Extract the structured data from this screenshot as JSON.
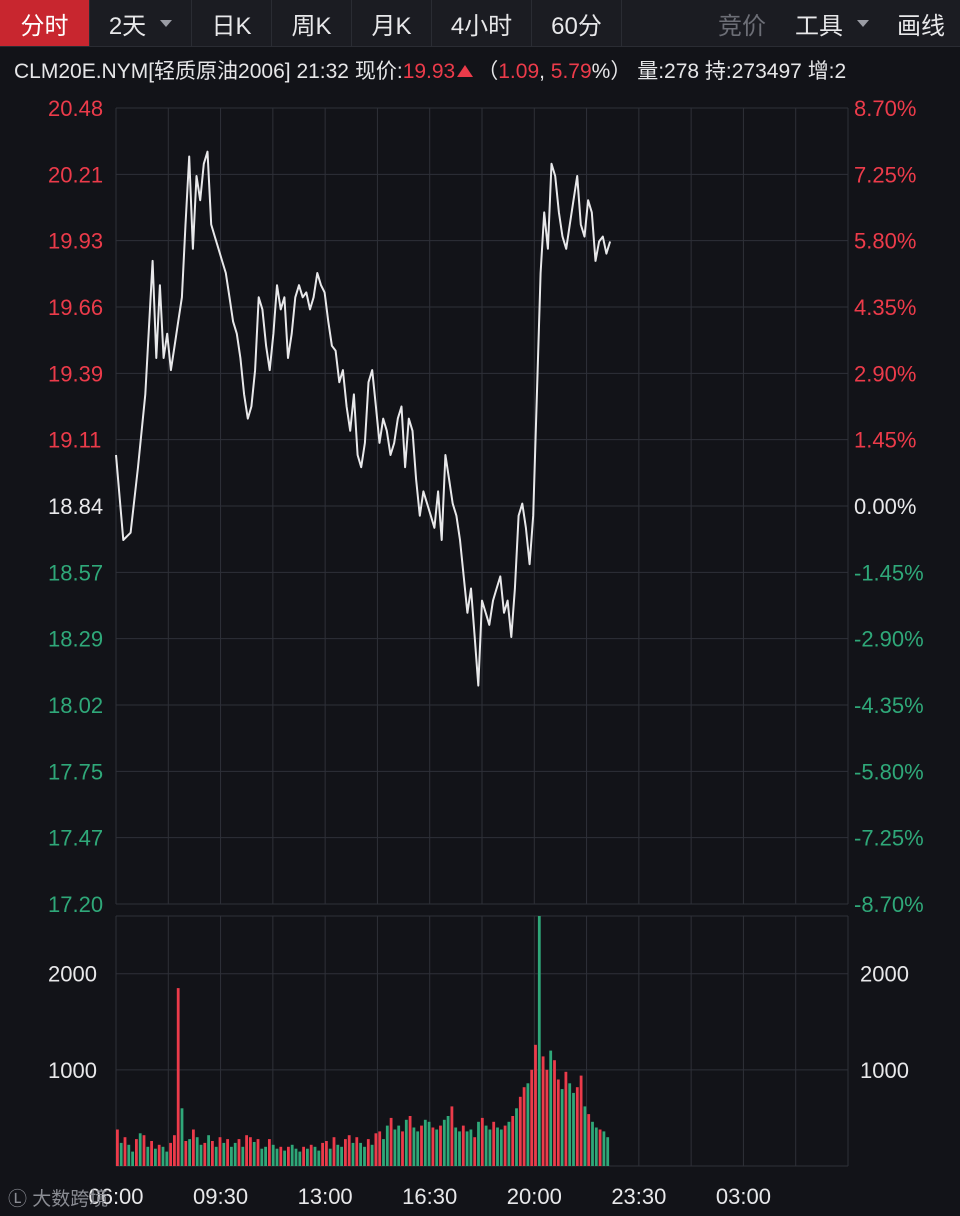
{
  "toolbar": {
    "tabs": [
      {
        "label": "分时",
        "active": true,
        "dropdown": false
      },
      {
        "label": "2天",
        "active": false,
        "dropdown": true
      },
      {
        "label": "日K",
        "active": false,
        "dropdown": false
      },
      {
        "label": "周K",
        "active": false,
        "dropdown": false
      },
      {
        "label": "月K",
        "active": false,
        "dropdown": false
      },
      {
        "label": "4小时",
        "active": false,
        "dropdown": false
      },
      {
        "label": "60分",
        "active": false,
        "dropdown": false
      }
    ],
    "auction_label": "竞价",
    "tools_label": "工具",
    "draw_label": "画线"
  },
  "info": {
    "symbol": "CLM20E.NYM[轻质原油2006]",
    "time": "21:32",
    "price_label": "现价:",
    "price": "19.93",
    "change_open": "（",
    "change": "1.09",
    "separator": ", ",
    "change_pct": "5.79",
    "pct_suffix": "%）",
    "volume": "量:278",
    "open_interest": "持:273497",
    "increase": "增:2"
  },
  "watermark": "大数跨境",
  "colors": {
    "up": "#ec3b4a",
    "down": "#2fa879",
    "line": "#e8e8ea",
    "grid": "#2e3038",
    "background": "#121318"
  },
  "chart_data": {
    "type": "line",
    "price_axis": [
      "20.48",
      "20.21",
      "19.93",
      "19.66",
      "19.39",
      "19.11",
      "18.84",
      "18.57",
      "18.29",
      "18.02",
      "17.75",
      "17.47",
      "17.20"
    ],
    "pct_axis": [
      "8.70%",
      "7.25%",
      "5.80%",
      "4.35%",
      "2.90%",
      "1.45%",
      "0.00%",
      "-1.45%",
      "-2.90%",
      "-4.35%",
      "-5.80%",
      "-7.25%",
      "-8.70%"
    ],
    "ylim": [
      17.2,
      20.48
    ],
    "reference_price": 18.84,
    "x_tick_labels": [
      "06:00",
      "09:30",
      "13:00",
      "16:30",
      "20:00",
      "23:30",
      "03:00"
    ],
    "volume_axis": [
      "2000",
      "1000"
    ],
    "volume_ylim": [
      0,
      2600
    ],
    "price": {
      "x": [
        0,
        0.01,
        0.02,
        0.03,
        0.04,
        0.05,
        0.055,
        0.06,
        0.065,
        0.07,
        0.075,
        0.08,
        0.085,
        0.09,
        0.095,
        0.1,
        0.105,
        0.11,
        0.115,
        0.12,
        0.125,
        0.13,
        0.135,
        0.14,
        0.145,
        0.15,
        0.155,
        0.16,
        0.165,
        0.17,
        0.175,
        0.18,
        0.185,
        0.19,
        0.195,
        0.2,
        0.205,
        0.21,
        0.215,
        0.22,
        0.225,
        0.23,
        0.235,
        0.24,
        0.245,
        0.25,
        0.255,
        0.26,
        0.265,
        0.27,
        0.275,
        0.28,
        0.285,
        0.29,
        0.295,
        0.3,
        0.305,
        0.31,
        0.315,
        0.32,
        0.325,
        0.33,
        0.335,
        0.34,
        0.345,
        0.35,
        0.355,
        0.36,
        0.365,
        0.37,
        0.375,
        0.38,
        0.385,
        0.39,
        0.395,
        0.4,
        0.405,
        0.41,
        0.415,
        0.42,
        0.425,
        0.43,
        0.435,
        0.44,
        0.445,
        0.45,
        0.455,
        0.46,
        0.465,
        0.47,
        0.475,
        0.48,
        0.485,
        0.49,
        0.495,
        0.5,
        0.505,
        0.51,
        0.515,
        0.52,
        0.525,
        0.53,
        0.535,
        0.54,
        0.545,
        0.55,
        0.555,
        0.56,
        0.565,
        0.57,
        0.575,
        0.58,
        0.585,
        0.59,
        0.595,
        0.6,
        0.605,
        0.61,
        0.615,
        0.62,
        0.625,
        0.63,
        0.635,
        0.64,
        0.645,
        0.65,
        0.655,
        0.66,
        0.665,
        0.67,
        0.675
      ],
      "y": [
        19.05,
        18.7,
        18.73,
        19.0,
        19.3,
        19.85,
        19.45,
        19.75,
        19.45,
        19.55,
        19.4,
        19.5,
        19.6,
        19.7,
        20.0,
        20.28,
        19.9,
        20.2,
        20.1,
        20.25,
        20.3,
        20.0,
        19.95,
        19.9,
        19.85,
        19.8,
        19.7,
        19.6,
        19.55,
        19.45,
        19.3,
        19.2,
        19.25,
        19.4,
        19.7,
        19.65,
        19.5,
        19.4,
        19.55,
        19.75,
        19.65,
        19.7,
        19.45,
        19.55,
        19.7,
        19.75,
        19.7,
        19.72,
        19.65,
        19.7,
        19.8,
        19.75,
        19.72,
        19.6,
        19.5,
        19.48,
        19.35,
        19.4,
        19.25,
        19.15,
        19.3,
        19.05,
        19.0,
        19.1,
        19.35,
        19.4,
        19.25,
        19.1,
        19.2,
        19.15,
        19.05,
        19.1,
        19.2,
        19.25,
        19.0,
        19.2,
        19.15,
        18.95,
        18.8,
        18.9,
        18.85,
        18.8,
        18.75,
        18.9,
        18.7,
        19.05,
        18.95,
        18.85,
        18.8,
        18.7,
        18.55,
        18.4,
        18.5,
        18.3,
        18.1,
        18.45,
        18.4,
        18.35,
        18.45,
        18.5,
        18.55,
        18.4,
        18.45,
        18.3,
        18.5,
        18.8,
        18.85,
        18.75,
        18.6,
        18.8,
        19.3,
        19.8,
        20.05,
        19.9,
        20.25,
        20.2,
        20.05,
        19.95,
        19.9,
        20.0,
        20.1,
        20.2,
        20.0,
        19.95,
        20.1,
        20.05,
        19.85,
        19.93,
        19.95,
        19.88,
        19.93
      ]
    },
    "volume": {
      "values": [
        380,
        240,
        300,
        220,
        150,
        280,
        340,
        320,
        200,
        260,
        180,
        220,
        200,
        150,
        240,
        320,
        1850,
        600,
        260,
        280,
        380,
        300,
        220,
        240,
        320,
        260,
        200,
        300,
        240,
        280,
        200,
        240,
        280,
        200,
        320,
        300,
        250,
        280,
        180,
        200,
        280,
        220,
        180,
        200,
        160,
        200,
        220,
        180,
        150,
        200,
        180,
        220,
        200,
        160,
        240,
        260,
        180,
        300,
        220,
        200,
        280,
        320,
        240,
        300,
        240,
        200,
        280,
        220,
        340,
        360,
        280,
        420,
        500,
        380,
        420,
        360,
        480,
        520,
        400,
        360,
        420,
        480,
        460,
        400,
        380,
        420,
        480,
        520,
        620,
        400,
        360,
        420,
        360,
        380,
        300,
        460,
        500,
        420,
        380,
        460,
        400,
        380,
        420,
        460,
        520,
        600,
        720,
        820,
        860,
        1000,
        1260,
        2600,
        1140,
        1000,
        1200,
        1100,
        900,
        800,
        980,
        860,
        760,
        820,
        940,
        620,
        540,
        460,
        400,
        380,
        360,
        300
      ],
      "up": [
        1,
        0,
        1,
        0,
        0,
        1,
        0,
        1,
        0,
        1,
        0,
        1,
        0,
        0,
        1,
        1,
        1,
        0,
        1,
        0,
        1,
        0,
        0,
        1,
        0,
        1,
        0,
        1,
        0,
        1,
        0,
        0,
        1,
        0,
        1,
        1,
        0,
        1,
        0,
        0,
        1,
        0,
        0,
        1,
        0,
        1,
        0,
        0,
        0,
        1,
        0,
        1,
        0,
        0,
        1,
        1,
        0,
        1,
        0,
        0,
        1,
        1,
        0,
        1,
        0,
        0,
        1,
        0,
        1,
        1,
        0,
        0,
        1,
        0,
        0,
        1,
        0,
        1,
        0,
        0,
        1,
        0,
        0,
        1,
        0,
        1,
        0,
        0,
        1,
        0,
        0,
        1,
        0,
        0,
        1,
        0,
        1,
        0,
        0,
        1,
        0,
        0,
        1,
        0,
        1,
        0,
        1,
        1,
        0,
        1,
        1,
        0,
        1,
        1,
        0,
        1,
        1,
        0,
        1,
        0,
        0,
        1,
        1,
        0,
        1,
        0,
        0,
        1,
        0,
        0
      ]
    }
  }
}
